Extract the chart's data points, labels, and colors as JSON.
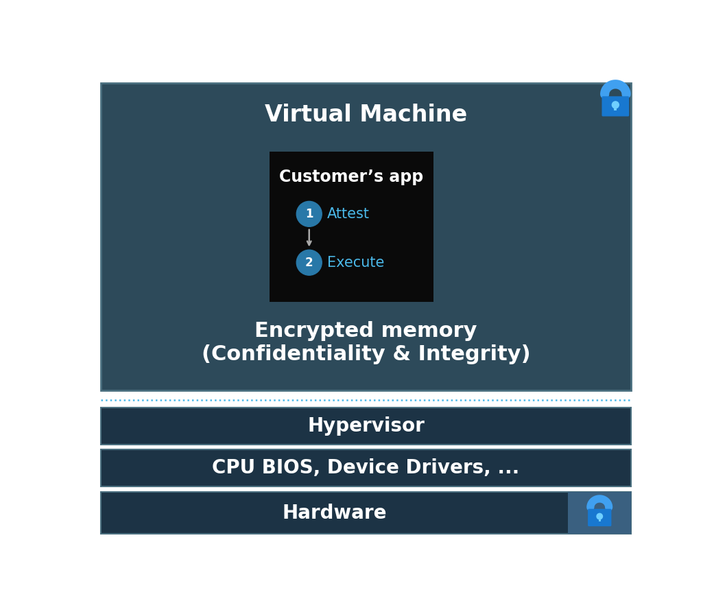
{
  "bg_color": "#ffffff",
  "vm_box_color": "#2d4a5a",
  "vm_box_border_color": "#4a6f7f",
  "app_box_color": "#0a0a0a",
  "hypervisor_box_color": "#1c3345",
  "hypervisor_border_color": "#4a6f7f",
  "cpu_box_color": "#1c3345",
  "cpu_border_color": "#4a6f7f",
  "hardware_box_color": "#1c3345",
  "hardware_border_color": "#4a6f7f",
  "hardware_lock_bg": "#3a6080",
  "circle_color": "#2878a8",
  "attest_text_color": "#4ab8e8",
  "execute_text_color": "#4ab8e8",
  "white_text": "#ffffff",
  "lock_color": "#2090e8",
  "lock_body_color": "#1878d0",
  "lock_shackle_color": "#40a0f0",
  "lock_keyhole_color": "#60c8ff",
  "dotted_line_color": "#4ab8e8",
  "vm_title": "Virtual Machine",
  "app_title": "Customer’s app",
  "step1_label": "1",
  "step1_text": "Attest",
  "step2_label": "2",
  "step2_text": "Execute",
  "encrypted_text": "Encrypted memory\n(Confidentiality & Integrity)",
  "hypervisor_text": "Hypervisor",
  "cpu_text": "CPU BIOS, Device Drivers, ...",
  "hardware_text": "Hardware",
  "title_fontsize": 24,
  "app_title_fontsize": 17,
  "step_fontsize": 15,
  "label_fontsize": 12,
  "encrypted_fontsize": 22,
  "bar_fontsize": 20,
  "shadow_color": "#bbbbbb"
}
